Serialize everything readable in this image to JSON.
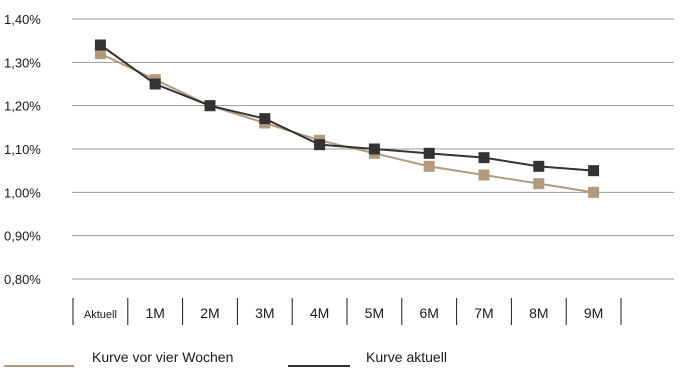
{
  "chart_data": {
    "type": "line",
    "categories": [
      "Aktuell",
      "1M",
      "2M",
      "3M",
      "4M",
      "5M",
      "6M",
      "7M",
      "8M",
      "9M"
    ],
    "y_tick_labels": [
      "0,80%",
      "0,90%",
      "1,00%",
      "1,10%",
      "1,20%",
      "1,30%",
      "1,40%"
    ],
    "ylim": [
      0.8,
      1.4
    ],
    "y_unit": "%",
    "grid": true,
    "legend_position": "bottom",
    "series": [
      {
        "name": "Kurve vor vier Wochen",
        "color": "#b39a7c",
        "values": [
          1.32,
          1.26,
          1.2,
          1.16,
          1.12,
          1.09,
          1.06,
          1.04,
          1.02,
          1.0
        ]
      },
      {
        "name": "Kurve aktuell",
        "color": "#333333",
        "values": [
          1.34,
          1.25,
          1.2,
          1.17,
          1.11,
          1.1,
          1.09,
          1.08,
          1.06,
          1.05
        ]
      }
    ]
  }
}
